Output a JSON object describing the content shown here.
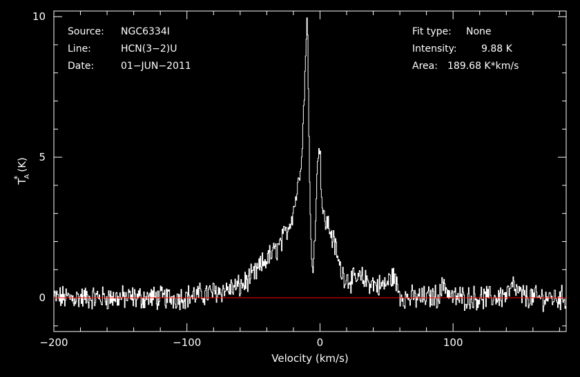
{
  "chart_data": {
    "type": "line",
    "title": "",
    "xlabel": "Velocity (km/s)",
    "ylabel_main": "T",
    "ylabel_sup": "*",
    "ylabel_sub": "A",
    "ylabel_unit": "(K)",
    "xlim": [
      -200,
      185
    ],
    "ylim": [
      -1.2,
      10.2
    ],
    "x_ticks": [
      -200,
      -100,
      0,
      100
    ],
    "x_tick_labels": [
      "−200",
      "−100",
      "0",
      "100"
    ],
    "y_ticks": [
      0,
      5,
      10
    ],
    "y_tick_labels": [
      "0",
      "5",
      "10"
    ],
    "grid": false,
    "series": [
      {
        "color": "#ffffff",
        "x": [
          -200,
          -190,
          -180,
          -170,
          -160,
          -150,
          -140,
          -130,
          -120,
          -110,
          -100,
          -90,
          -80,
          -70,
          -60,
          -55,
          -50,
          -45,
          -40,
          -35,
          -30,
          -26,
          -22,
          -19,
          -16,
          -14,
          -12,
          -11,
          -10.5,
          -10,
          -9.5,
          -9,
          -8.5,
          -8,
          -7.5,
          -7,
          -6,
          -5,
          -4,
          -3,
          -2,
          -1,
          0,
          1,
          2,
          3,
          4,
          6,
          8,
          10,
          12,
          14,
          16,
          18,
          20,
          25,
          30,
          35,
          40,
          45,
          50,
          53,
          55,
          57,
          60,
          65,
          70,
          80,
          90,
          93,
          95,
          97,
          100,
          110,
          120,
          130,
          140,
          145,
          150,
          160,
          170,
          180,
          185
        ],
        "y": [
          0,
          0,
          0,
          0,
          0,
          0,
          0,
          0,
          0,
          0,
          0.05,
          0.1,
          0.2,
          0.3,
          0.4,
          0.6,
          0.8,
          1.1,
          1.4,
          1.6,
          1.9,
          2.3,
          2.8,
          3.4,
          4.2,
          5.2,
          7.2,
          8.6,
          9.5,
          9.85,
          9.3,
          7.8,
          5.6,
          4.0,
          2.8,
          1.8,
          1.2,
          1.5,
          2.5,
          3.5,
          4.8,
          5.6,
          5.0,
          3.6,
          3.0,
          2.8,
          2.7,
          2.6,
          2.3,
          2.0,
          1.7,
          1.2,
          0.9,
          0.8,
          0.7,
          0.6,
          0.7,
          0.6,
          0.5,
          0.4,
          0.5,
          0.7,
          0.8,
          0.5,
          0.1,
          0,
          0,
          0,
          0.1,
          0.6,
          0.3,
          0.1,
          0,
          0,
          0,
          0,
          0.1,
          0.4,
          0.1,
          0,
          0,
          0,
          0
        ]
      },
      {
        "color": "#ff0000",
        "x": [
          -200,
          185
        ],
        "y": [
          0,
          0
        ]
      }
    ],
    "annotations": {
      "source_label": "Source:",
      "source_value": "NGC6334I",
      "line_label": "Line:",
      "line_value": "HCN(3−2)U",
      "date_label": "Date:",
      "date_value": "01−JUN−2011",
      "fit_label": "Fit type:",
      "fit_value": "None",
      "intensity_label": "Intensity:",
      "intensity_value": "9.88 K",
      "area_label": "Area:",
      "area_value": "189.68 K*km/s"
    }
  }
}
